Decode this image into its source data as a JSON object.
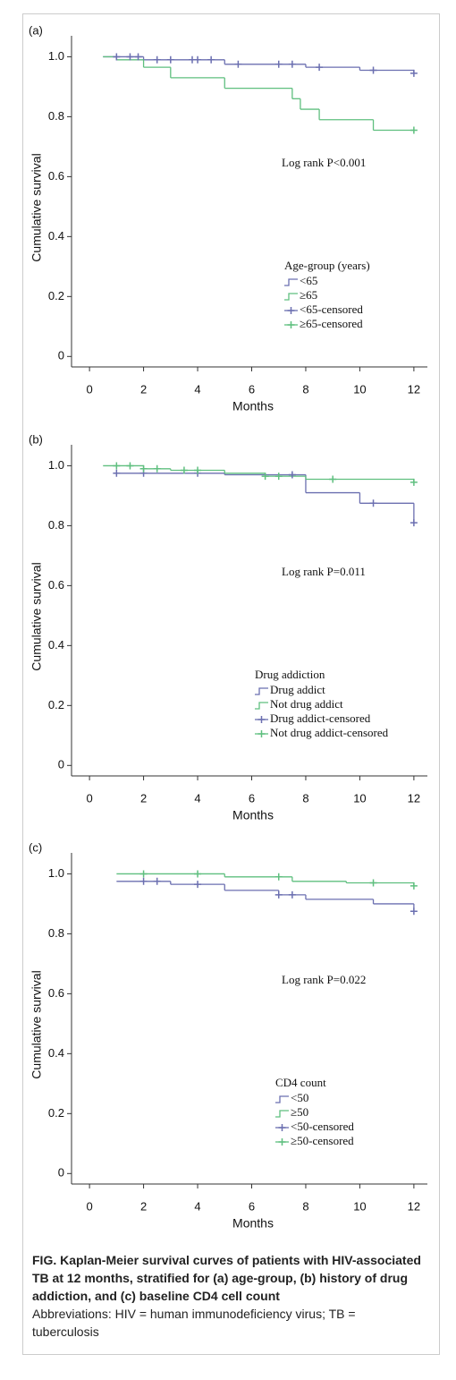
{
  "chart_data": [
    {
      "type": "step",
      "panel": "(a)",
      "ylabel": "Cumulative survival",
      "xlabel": "Months",
      "annotation": "Log rank P<0.001",
      "legend_title": "Age-group (years)",
      "xlim": [
        -0.5,
        12.5
      ],
      "xticks": [
        0,
        2,
        4,
        6,
        8,
        10,
        12
      ],
      "ylim": [
        -0.02,
        1.07
      ],
      "yticks": [
        0,
        0.2,
        0.4,
        0.6,
        0.8,
        {
          "value": 1,
          "label": "1.0"
        }
      ],
      "series": [
        {
          "name": "<65",
          "kind": "line",
          "color": "#6b6fb0",
          "x": [
            0.5,
            2,
            5,
            8,
            10,
            12
          ],
          "values": [
            1.0,
            0.99,
            0.975,
            0.965,
            0.955,
            0.945
          ]
        },
        {
          "name": "≥65",
          "kind": "line",
          "color": "#5fbf7f",
          "x": [
            0.5,
            1,
            2,
            3,
            5,
            7.5,
            7.8,
            8.5,
            10.5,
            12
          ],
          "values": [
            1.0,
            0.99,
            0.965,
            0.93,
            0.895,
            0.86,
            0.825,
            0.79,
            0.755,
            0.755
          ]
        },
        {
          "name": "<65-censored",
          "kind": "censored",
          "color": "#6b6fb0",
          "x": [
            1,
            1.5,
            1.8,
            2.5,
            3,
            3.8,
            4,
            4.5,
            5.5,
            7,
            7.5,
            8.5,
            10.5,
            12
          ],
          "values": [
            1.0,
            1.0,
            1.0,
            0.99,
            0.99,
            0.99,
            0.99,
            0.99,
            0.975,
            0.975,
            0.975,
            0.965,
            0.955,
            0.945
          ]
        },
        {
          "name": "≥65-censored",
          "kind": "censored",
          "color": "#5fbf7f",
          "x": [
            12
          ],
          "values": [
            0.755
          ]
        }
      ]
    },
    {
      "type": "step",
      "panel": "(b)",
      "ylabel": "Cumulative survival",
      "xlabel": "Months",
      "annotation": "Log rank P=0.011",
      "legend_title": "Drug addiction",
      "xlim": [
        -0.5,
        12.5
      ],
      "xticks": [
        0,
        2,
        4,
        6,
        8,
        10,
        12
      ],
      "ylim": [
        -0.02,
        1.07
      ],
      "yticks": [
        0,
        0.2,
        0.4,
        0.6,
        0.8,
        {
          "value": 1,
          "label": "1.0"
        }
      ],
      "series": [
        {
          "name": "Drug addict",
          "kind": "line",
          "color": "#6b6fb0",
          "x": [
            1,
            5,
            8,
            10,
            12
          ],
          "values": [
            0.975,
            0.97,
            0.91,
            0.875,
            0.81
          ]
        },
        {
          "name": "Not drug addict",
          "kind": "line",
          "color": "#5fbf7f",
          "x": [
            0.5,
            2,
            3,
            5,
            6.5,
            8,
            12
          ],
          "values": [
            1.0,
            0.99,
            0.985,
            0.975,
            0.965,
            0.955,
            0.945
          ]
        },
        {
          "name": "Drug addict-censored",
          "kind": "censored",
          "color": "#6b6fb0",
          "x": [
            1,
            2,
            4,
            7.5,
            10.5,
            12
          ],
          "values": [
            0.975,
            0.975,
            0.975,
            0.97,
            0.875,
            0.81
          ]
        },
        {
          "name": "Not drug addict-censored",
          "kind": "censored",
          "color": "#5fbf7f",
          "x": [
            1,
            1.5,
            2,
            2.5,
            3.5,
            4,
            6.5,
            7,
            9,
            12
          ],
          "values": [
            1.0,
            1.0,
            0.99,
            0.99,
            0.985,
            0.985,
            0.965,
            0.965,
            0.955,
            0.945
          ]
        }
      ]
    },
    {
      "type": "step",
      "panel": "(c)",
      "ylabel": "Cumulative survival",
      "xlabel": "Months",
      "annotation": "Log rank P=0.022",
      "legend_title": "CD4 count",
      "xlim": [
        -0.5,
        12.5
      ],
      "xticks": [
        0,
        2,
        4,
        6,
        8,
        10,
        12
      ],
      "ylim": [
        -0.02,
        1.07
      ],
      "yticks": [
        0,
        0.2,
        0.4,
        0.6,
        0.8,
        {
          "value": 1,
          "label": "1.0"
        }
      ],
      "series": [
        {
          "name": "<50",
          "kind": "line",
          "color": "#6b6fb0",
          "x": [
            1,
            3,
            5,
            7,
            8,
            10.5,
            12
          ],
          "values": [
            0.975,
            0.965,
            0.945,
            0.93,
            0.915,
            0.9,
            0.875
          ]
        },
        {
          "name": "≥50",
          "kind": "line",
          "color": "#5fbf7f",
          "x": [
            1,
            5,
            7.5,
            9.5,
            12
          ],
          "values": [
            1.0,
            0.99,
            0.975,
            0.97,
            0.96
          ]
        },
        {
          "name": "<50-censored",
          "kind": "censored",
          "color": "#6b6fb0",
          "x": [
            2,
            2.5,
            4,
            7,
            7.5,
            12
          ],
          "values": [
            0.975,
            0.975,
            0.965,
            0.93,
            0.93,
            0.875
          ]
        },
        {
          "name": "≥50-censored",
          "kind": "censored",
          "color": "#5fbf7f",
          "x": [
            2,
            4,
            7,
            10.5,
            12
          ],
          "values": [
            1.0,
            1.0,
            0.99,
            0.97,
            0.96
          ]
        }
      ]
    }
  ],
  "caption": {
    "title": "FIG.  Kaplan-Meier survival curves of patients with HIV-associated TB at 12 months, stratified for (a) age-group, (b) history of drug addiction, and (c) baseline CD4 cell count",
    "note": "Abbreviations: HIV = human immunodeficiency virus; TB = tuberculosis"
  }
}
